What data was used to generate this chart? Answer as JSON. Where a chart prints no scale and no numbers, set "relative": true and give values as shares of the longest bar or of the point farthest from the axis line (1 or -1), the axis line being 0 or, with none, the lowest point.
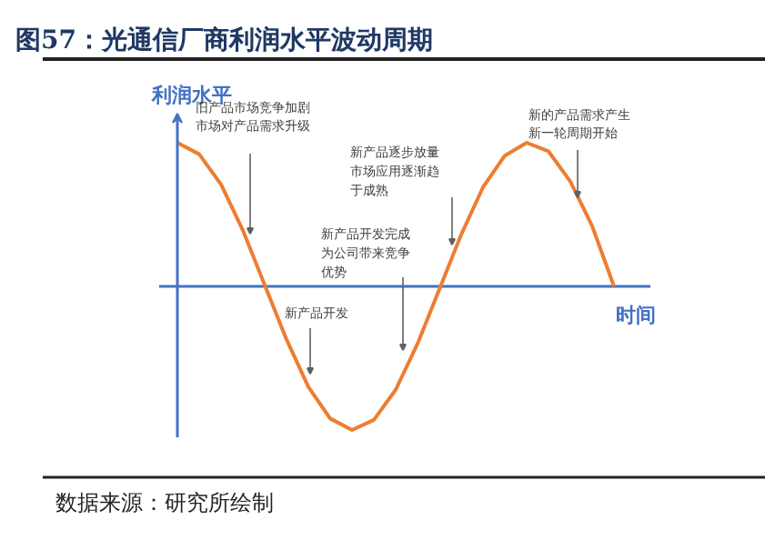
{
  "chart_data": {
    "type": "line",
    "relative": true,
    "title": "图57：光通信厂商利润水平波动周期",
    "xlabel": "时间",
    "ylabel": "利润水平",
    "categories": [
      null,
      null,
      null,
      null,
      null,
      null,
      null,
      null,
      null,
      null,
      null,
      null,
      null,
      null,
      null,
      null,
      null,
      null,
      null,
      null,
      null
    ],
    "series": [
      {
        "color": "#ed7d31",
        "values": [
          1.0,
          0.92,
          0.71,
          0.39,
          0.01,
          -0.37,
          -0.7,
          -0.92,
          -1.0,
          -0.93,
          -0.72,
          -0.4,
          -0.02,
          0.36,
          0.69,
          0.91,
          1.0,
          0.94,
          0.73,
          0.42,
          0.0
        ]
      }
    ],
    "ref_lines": [
      {
        "axis": "y",
        "value": 0,
        "color": "#4472c4"
      }
    ],
    "annotations": [
      "旧产品市场竞争加剧市场对产品需求升级",
      "新产品开发",
      "新产品开发完成为公司带来竞争优势",
      "新产品逐步放量市场应用逐渐趋于成熟",
      "新的产品需求产生新一轮周期开始",
      "数据来源：研究所绘制"
    ]
  }
}
